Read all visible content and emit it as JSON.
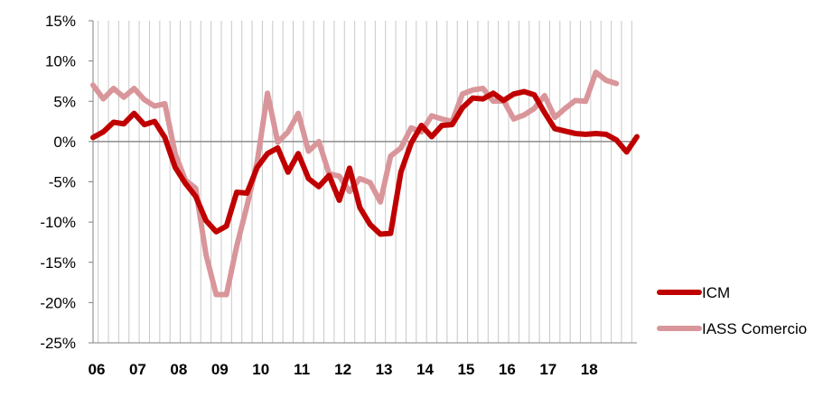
{
  "chart_data": {
    "type": "line",
    "ylim": [
      -25,
      15
    ],
    "yticks": [
      "15%",
      "10%",
      "5%",
      "0%",
      "-5%",
      "-10%",
      "-15%",
      "-20%",
      "-25%"
    ],
    "ytick_values": [
      15,
      10,
      5,
      0,
      -5,
      -10,
      -15,
      -20,
      -25
    ],
    "xtick_labels": [
      "06",
      "07",
      "08",
      "09",
      "10",
      "11",
      "12",
      "13",
      "14",
      "15",
      "16",
      "17",
      "18"
    ],
    "grid": "vertical",
    "legend": "right",
    "series": [
      {
        "name": "ICM",
        "color": "#c00000",
        "values": [
          0.5,
          1.2,
          2.4,
          2.2,
          3.5,
          2.1,
          2.5,
          0.5,
          -3.2,
          -5.2,
          -6.8,
          -9.8,
          -11.2,
          -10.5,
          -6.3,
          -6.4,
          -3.2,
          -1.5,
          -0.8,
          -3.8,
          -1.5,
          -4.6,
          -5.6,
          -4.2,
          -7.3,
          -3.3,
          -8.2,
          -10.3,
          -11.5,
          -11.4,
          -3.8,
          -0.2,
          2.0,
          0.6,
          2.0,
          2.1,
          4.2,
          5.4,
          5.3,
          6.0,
          5.1,
          5.9,
          6.2,
          5.8,
          3.6,
          1.6,
          1.3,
          1.0,
          0.9,
          1.0,
          0.9,
          0.2,
          -1.3,
          0.6
        ]
      },
      {
        "name": "IASS Comercio",
        "color": "#d9969a",
        "values": [
          7.0,
          5.3,
          6.6,
          5.5,
          6.6,
          5.2,
          4.4,
          4.7,
          -1.5,
          -4.8,
          -5.8,
          -14.0,
          -19.0,
          -19.0,
          -13.0,
          -8.0,
          -2.5,
          6.0,
          -0.1,
          1.2,
          3.5,
          -1.2,
          0.0,
          -4.0,
          -4.3,
          -6.2,
          -4.6,
          -5.1,
          -7.5,
          -1.8,
          -0.8,
          1.7,
          1.2,
          3.2,
          2.8,
          2.5,
          5.9,
          6.4,
          6.6,
          5.0,
          5.1,
          2.8,
          3.3,
          4.1,
          5.7,
          3.0,
          4.1,
          5.1,
          5.0,
          8.6,
          7.6,
          7.2
        ]
      }
    ]
  }
}
